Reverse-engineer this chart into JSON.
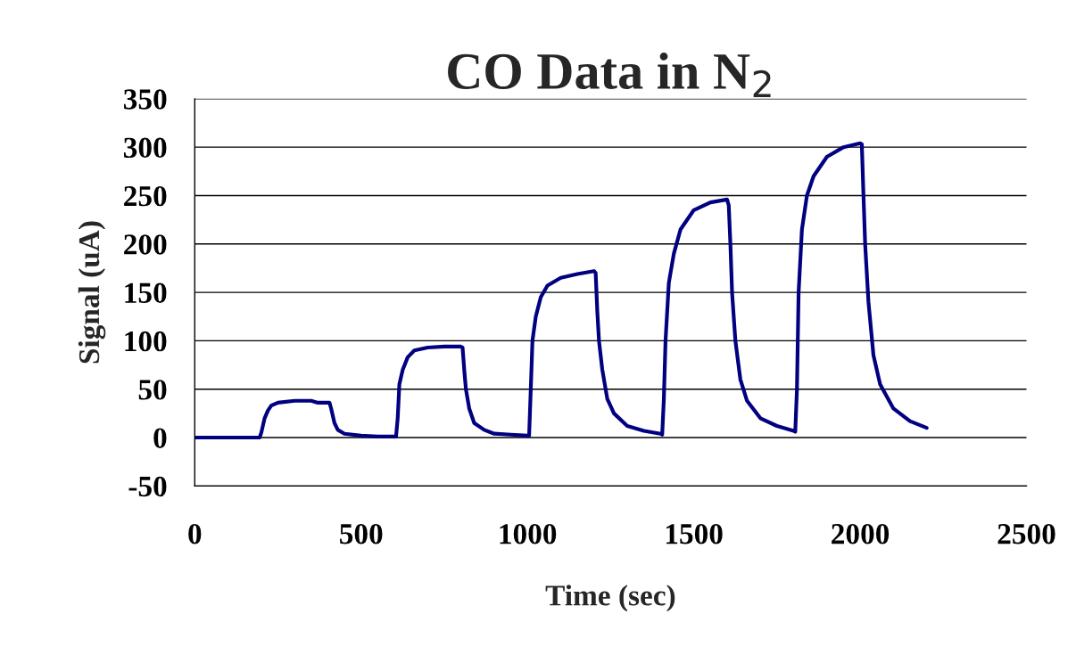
{
  "chart_data": {
    "type": "line",
    "title": "CO Data in N$_{2}$",
    "xlabel": "Time (sec)",
    "ylabel": "Signal (uA)",
    "xlim": [
      0,
      2500
    ],
    "xticks": [
      0,
      500,
      1000,
      1500,
      2000,
      2500
    ],
    "ylim": [
      -50,
      350
    ],
    "yticks": [
      -50,
      0,
      50,
      100,
      150,
      200,
      250,
      300,
      350
    ],
    "grid": "y",
    "marker": "none",
    "line_style": "solid",
    "series": [
      {
        "color": "#000080",
        "x": [
          0,
          50,
          100,
          150,
          195,
          200,
          210,
          220,
          230,
          250,
          300,
          350,
          370,
          405,
          410,
          420,
          430,
          450,
          500,
          550,
          600,
          605,
          610,
          615,
          625,
          640,
          660,
          700,
          750,
          800,
          805,
          810,
          815,
          825,
          840,
          870,
          900,
          950,
          1000,
          1005,
          1010,
          1015,
          1025,
          1040,
          1060,
          1100,
          1150,
          1200,
          1205,
          1210,
          1215,
          1225,
          1240,
          1260,
          1300,
          1350,
          1400,
          1405,
          1410,
          1415,
          1425,
          1440,
          1460,
          1500,
          1550,
          1600,
          1605,
          1610,
          1615,
          1625,
          1640,
          1660,
          1700,
          1750,
          1800,
          1805,
          1810,
          1815,
          1825,
          1840,
          1860,
          1900,
          1950,
          2000,
          2005,
          2010,
          2015,
          2025,
          2040,
          2060,
          2100,
          2150,
          2200
        ],
        "values": [
          0,
          0,
          0,
          0,
          0,
          5,
          20,
          28,
          33,
          36,
          38,
          38,
          36,
          36,
          30,
          15,
          8,
          4,
          2,
          1,
          1,
          1,
          20,
          55,
          70,
          83,
          90,
          93,
          94,
          94,
          93,
          70,
          50,
          30,
          15,
          8,
          4,
          3,
          2,
          2,
          50,
          100,
          125,
          145,
          157,
          165,
          169,
          172,
          170,
          130,
          100,
          70,
          40,
          25,
          12,
          7,
          4,
          3,
          40,
          100,
          160,
          190,
          215,
          235,
          243,
          246,
          240,
          200,
          150,
          100,
          60,
          38,
          20,
          12,
          7,
          6,
          50,
          150,
          215,
          250,
          270,
          290,
          300,
          304,
          303,
          250,
          200,
          140,
          85,
          55,
          30,
          17,
          10
        ]
      }
    ]
  }
}
